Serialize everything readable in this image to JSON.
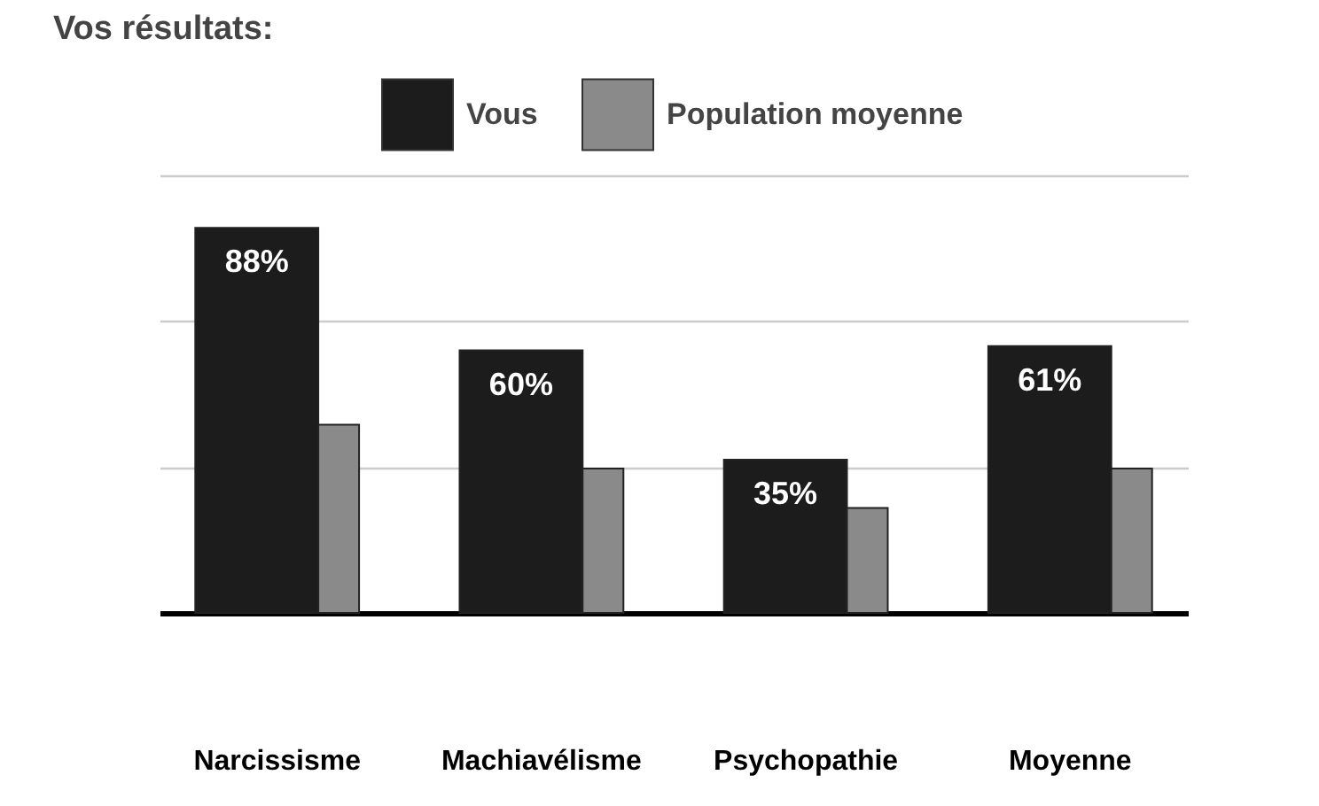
{
  "chart_data": {
    "type": "bar",
    "title": "Vos résultats:",
    "categories": [
      "Narcissisme",
      "Machiavélisme",
      "Psychopathie",
      "Moyenne"
    ],
    "series": [
      {
        "name": "Vous",
        "color": "#1c1c1c",
        "values": [
          88,
          60,
          35,
          61
        ],
        "value_labels": [
          "88%",
          "60%",
          "35%",
          "61%"
        ]
      },
      {
        "name": "Population moyenne",
        "color": "#8a8a8a",
        "values": [
          43,
          33,
          24,
          33
        ]
      }
    ],
    "ylim": [
      0,
      100
    ],
    "yticks": [
      {
        "value": 0,
        "label": null
      },
      {
        "value": 33.3,
        "label": null
      },
      {
        "value": 66.7,
        "label": null
      },
      {
        "value": 100,
        "label": null
      }
    ],
    "grid": "y",
    "legend": "top",
    "tick_labels": "x"
  }
}
